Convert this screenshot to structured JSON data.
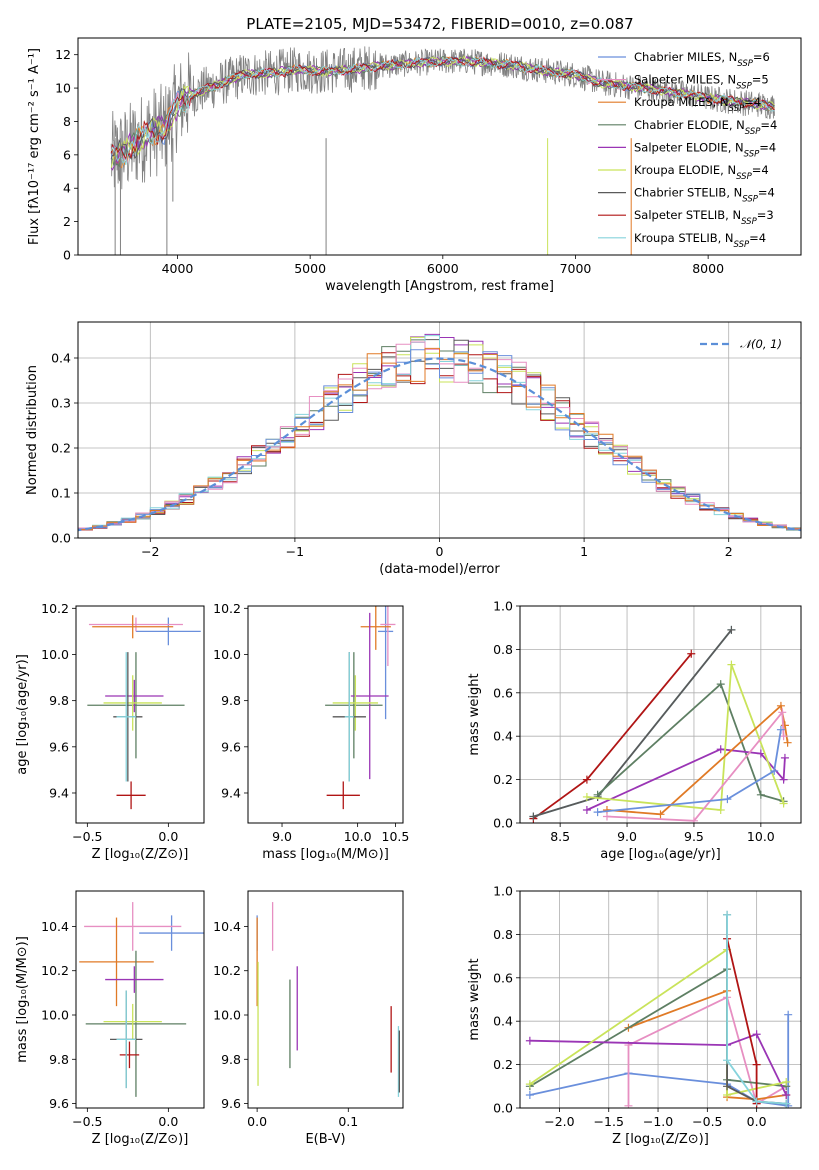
{
  "title": "PLATE=2105, MJD=53472, FIBERID=0010, z=0.087",
  "colors": {
    "chabrier_miles": "#6a8fdc",
    "salpeter_miles": "#e78fc2",
    "kroupa_miles": "#e07a26",
    "chabrier_elodie": "#5e7f63",
    "salpeter_elodie": "#9a35b5",
    "kroupa_elodie": "#c9e35a",
    "chabrier_stelib": "#5a5a5a",
    "salpeter_stelib": "#b01515",
    "kroupa_stelib": "#86d3dc",
    "data": "#808080",
    "gaussian": "#5b8fd8"
  },
  "chart_data": [
    {
      "type": "line",
      "id": "spectrum",
      "title": "PLATE=2105, MJD=53472, FIBERID=0010, z=0.087",
      "xlabel": "wavelength [Angstrom, rest frame]",
      "ylabel": "Flux [fλ10⁻¹⁷ erg cm⁻² s⁻¹ A⁻¹]",
      "xlim": [
        3250,
        8700
      ],
      "ylim": [
        0,
        13
      ],
      "xticks": [
        4000,
        5000,
        6000,
        7000,
        8000
      ],
      "yticks": [
        0,
        2,
        4,
        6,
        8,
        10,
        12
      ],
      "grid": false,
      "legend_position": "right",
      "legend": [
        {
          "label": "Chabrier MILES, N",
          "sub": "SSP",
          "suffix": "=6",
          "color": "chabrier_miles"
        },
        {
          "label": "Salpeter MILES, N",
          "sub": "SSP",
          "suffix": "=5",
          "color": "salpeter_miles"
        },
        {
          "label": "Kroupa MILES, N",
          "sub": "SSP",
          "suffix": "=4",
          "color": "kroupa_miles"
        },
        {
          "label": "Chabrier ELODIE, N",
          "sub": "SSP",
          "suffix": "=4",
          "color": "chabrier_elodie"
        },
        {
          "label": "Salpeter ELODIE, N",
          "sub": "SSP",
          "suffix": "=4",
          "color": "salpeter_elodie"
        },
        {
          "label": "Kroupa ELODIE, N",
          "sub": "SSP",
          "suffix": "=4",
          "color": "kroupa_elodie"
        },
        {
          "label": "Chabrier STELIB, N",
          "sub": "SSP",
          "suffix": "=4",
          "color": "chabrier_stelib"
        },
        {
          "label": "Salpeter STELIB, N",
          "sub": "SSP",
          "suffix": "=3",
          "color": "salpeter_stelib"
        },
        {
          "label": "Kroupa STELIB, N",
          "sub": "SSP",
          "suffix": "=4",
          "color": "kroupa_stelib"
        }
      ],
      "continuum": {
        "x": [
          3500,
          3600,
          3700,
          3800,
          3900,
          4000,
          4100,
          4300,
          4500,
          4700,
          4900,
          5100,
          5300,
          5500,
          5800,
          6000,
          6200,
          6500,
          6800,
          7000,
          7200,
          7500,
          7800,
          8000,
          8200,
          8400,
          8500
        ],
        "y": [
          5.8,
          6.2,
          6.8,
          7.4,
          7.5,
          9.0,
          9.6,
          10.2,
          10.8,
          10.9,
          11.1,
          11.0,
          11.1,
          11.3,
          11.5,
          11.6,
          11.6,
          11.4,
          11.0,
          10.8,
          10.3,
          10.0,
          9.7,
          9.4,
          9.2,
          9.0,
          8.9
        ]
      },
      "spikes_down": [
        {
          "x": 3530,
          "y": 0
        },
        {
          "x": 3570,
          "y": 0
        },
        {
          "x": 3920,
          "y": 0
        },
        {
          "x": 3965,
          "y": 3.2
        },
        {
          "x": 5120,
          "y": 0
        },
        {
          "x": 6790,
          "y": 0
        },
        {
          "x": 7420,
          "y": 0
        }
      ]
    },
    {
      "type": "histogram",
      "id": "residuals",
      "xlabel": "(data-model)/error",
      "ylabel": "Normed distribution",
      "xlim": [
        -2.5,
        2.5
      ],
      "ylim": [
        0,
        0.48
      ],
      "xticks": [
        -2,
        -1,
        0,
        1,
        2
      ],
      "yticks": [
        0.0,
        0.1,
        0.2,
        0.3,
        0.4
      ],
      "grid": true,
      "legend_position": "top-right",
      "gaussian_label": "𝒩(0, 1)",
      "bin_width": 0.1
    },
    {
      "type": "scatter",
      "id": "age_vs_z",
      "xlabel": "Z [log₁₀(Z/Z⊙)]",
      "ylabel": "age  [log₁₀(age/yr)]",
      "xlim": [
        -0.57,
        0.22
      ],
      "ylim": [
        9.27,
        10.21
      ],
      "xticks": [
        -0.5,
        0.0
      ],
      "yticks": [
        9.4,
        9.6,
        9.8,
        10.0,
        10.2
      ],
      "grid": false,
      "points": [
        {
          "model": "chabrier_miles",
          "x": 0.0,
          "y": 10.1,
          "xerr": 0.2,
          "yerr": 0.06
        },
        {
          "model": "salpeter_miles",
          "x": -0.2,
          "y": 10.13,
          "xerr": 0.29,
          "yerr": 0.03
        },
        {
          "model": "kroupa_miles",
          "x": -0.22,
          "y": 10.12,
          "xerr": 0.25,
          "yerr": 0.05
        },
        {
          "model": "chabrier_elodie",
          "x": -0.2,
          "y": 9.78,
          "xerr": 0.3,
          "yerr": 0.23
        },
        {
          "model": "salpeter_elodie",
          "x": -0.21,
          "y": 9.82,
          "xerr": 0.18,
          "yerr": 0.07
        },
        {
          "model": "kroupa_elodie",
          "x": -0.22,
          "y": 9.79,
          "xerr": 0.18,
          "yerr": 0.12
        },
        {
          "model": "chabrier_stelib",
          "x": -0.25,
          "y": 9.73,
          "xerr": 0.09,
          "yerr": 0.28
        },
        {
          "model": "salpeter_stelib",
          "x": -0.23,
          "y": 9.39,
          "xerr": 0.09,
          "yerr": 0.06
        },
        {
          "model": "kroupa_stelib",
          "x": -0.26,
          "y": 9.73,
          "xerr": 0.06,
          "yerr": 0.28
        }
      ]
    },
    {
      "type": "scatter",
      "id": "age_vs_mass",
      "xlabel": "mass [log₁₀(M/M⊙)]",
      "ylabel": "",
      "xlim": [
        8.55,
        10.6
      ],
      "ylim": [
        9.27,
        10.21
      ],
      "xticks": [
        9.0,
        10.0,
        10.5
      ],
      "yticks": [
        9.4,
        9.6,
        9.8,
        10.0,
        10.2
      ],
      "grid": false,
      "points": [
        {
          "model": "chabrier_miles",
          "x": 10.37,
          "y": 10.1,
          "xerr": 0.1,
          "yerr": 0.38
        },
        {
          "model": "salpeter_miles",
          "x": 10.4,
          "y": 10.13,
          "xerr": 0.1,
          "yerr": 0.18
        },
        {
          "model": "kroupa_miles",
          "x": 10.24,
          "y": 10.12,
          "xerr": 0.2,
          "yerr": 0.1
        },
        {
          "model": "chabrier_elodie",
          "x": 9.95,
          "y": 9.78,
          "xerr": 0.38,
          "yerr": 0.23
        },
        {
          "model": "salpeter_elodie",
          "x": 10.16,
          "y": 9.82,
          "xerr": 0.25,
          "yerr": 0.36
        },
        {
          "model": "kroupa_elodie",
          "x": 9.97,
          "y": 9.79,
          "xerr": 0.3,
          "yerr": 0.12
        },
        {
          "model": "chabrier_stelib",
          "x": 9.89,
          "y": 9.73,
          "xerr": 0.22,
          "yerr": 0.28
        },
        {
          "model": "salpeter_stelib",
          "x": 9.81,
          "y": 9.39,
          "xerr": 0.22,
          "yerr": 0.06
        },
        {
          "model": "kroupa_stelib",
          "x": 9.89,
          "y": 9.73,
          "xerr": 0.06,
          "yerr": 0.28
        }
      ]
    },
    {
      "type": "line",
      "id": "weight_vs_age",
      "xlabel": "age  [log₁₀(age/yr)]",
      "ylabel": "mass weight",
      "xlim": [
        8.2,
        10.3
      ],
      "ylim": [
        0,
        1.0
      ],
      "xticks": [
        8.5,
        9.0,
        9.5,
        10.0
      ],
      "yticks": [
        0.0,
        0.2,
        0.4,
        0.6,
        0.8,
        1.0
      ],
      "grid": true,
      "series": [
        {
          "model": "salpeter_stelib",
          "x": [
            8.3,
            8.7,
            9.48
          ],
          "y": [
            0.02,
            0.2,
            0.78
          ]
        },
        {
          "model": "kroupa_stelib",
          "x": [
            8.3,
            8.78,
            9.78
          ],
          "y": [
            0.03,
            0.12,
            0.89
          ]
        },
        {
          "model": "chabrier_stelib",
          "x": [
            8.3,
            8.78,
            9.78
          ],
          "y": [
            0.03,
            0.12,
            0.89
          ]
        },
        {
          "model": "chabrier_elodie",
          "x": [
            8.78,
            9.7,
            10.0,
            10.17
          ],
          "y": [
            0.13,
            0.64,
            0.13,
            0.1
          ]
        },
        {
          "model": "salpeter_elodie",
          "x": [
            8.7,
            9.7,
            10.0,
            10.17,
            10.18
          ],
          "y": [
            0.06,
            0.34,
            0.32,
            0.2,
            0.3
          ]
        },
        {
          "model": "kroupa_elodie",
          "x": [
            8.7,
            9.7,
            9.78,
            10.17
          ],
          "y": [
            0.12,
            0.06,
            0.73,
            0.09
          ]
        },
        {
          "model": "kroupa_miles",
          "x": [
            8.85,
            9.25,
            10.15,
            10.18,
            10.2
          ],
          "y": [
            0.06,
            0.04,
            0.54,
            0.45,
            0.37
          ]
        },
        {
          "model": "salpeter_miles",
          "x": [
            8.85,
            9.5,
            10.16,
            10.17
          ],
          "y": [
            0.03,
            0.01,
            0.51,
            0.4
          ]
        },
        {
          "model": "chabrier_miles",
          "x": [
            8.78,
            9.75,
            10.1,
            10.15
          ],
          "y": [
            0.05,
            0.11,
            0.24,
            0.43
          ]
        }
      ]
    },
    {
      "type": "scatter",
      "id": "mass_vs_z",
      "xlabel": "Z [log₁₀(Z/Z⊙)]",
      "ylabel": "mass [log₁₀(M/M⊙)]",
      "xlim": [
        -0.57,
        0.22
      ],
      "ylim": [
        9.58,
        10.56
      ],
      "xticks": [
        -0.5,
        0.0
      ],
      "yticks": [
        9.6,
        9.8,
        10.0,
        10.2,
        10.4
      ],
      "grid": false,
      "points": [
        {
          "model": "chabrier_miles",
          "x": 0.02,
          "y": 10.37,
          "xerr": 0.2,
          "yerr": 0.08
        },
        {
          "model": "salpeter_miles",
          "x": -0.22,
          "y": 10.4,
          "xerr": 0.3,
          "yerr": 0.11
        },
        {
          "model": "kroupa_miles",
          "x": -0.32,
          "y": 10.24,
          "xerr": 0.23,
          "yerr": 0.2
        },
        {
          "model": "chabrier_elodie",
          "x": -0.2,
          "y": 9.96,
          "xerr": 0.31,
          "yerr": 0.33
        },
        {
          "model": "salpeter_elodie",
          "x": -0.21,
          "y": 10.16,
          "xerr": 0.18,
          "yerr": 0.06
        },
        {
          "model": "kroupa_elodie",
          "x": -0.22,
          "y": 9.97,
          "xerr": 0.18,
          "yerr": 0.08
        },
        {
          "model": "chabrier_stelib",
          "x": -0.26,
          "y": 9.89,
          "xerr": 0.1,
          "yerr": 0.22
        },
        {
          "model": "salpeter_stelib",
          "x": -0.24,
          "y": 9.82,
          "xerr": 0.06,
          "yerr": 0.06
        },
        {
          "model": "kroupa_stelib",
          "x": -0.26,
          "y": 9.89,
          "xerr": 0.06,
          "yerr": 0.22
        }
      ]
    },
    {
      "type": "scatter",
      "id": "mass_vs_ebv",
      "xlabel": "E(B-V)",
      "ylabel": "",
      "xlim": [
        -0.01,
        0.16
      ],
      "ylim": [
        9.58,
        10.56
      ],
      "xticks": [
        0.0,
        0.1
      ],
      "yticks": [
        9.6,
        9.8,
        10.0,
        10.2,
        10.4
      ],
      "grid": false,
      "points": [
        {
          "model": "chabrier_miles",
          "x": 0.0,
          "y": 10.37,
          "xerr": 0,
          "yerr": 0.08
        },
        {
          "model": "kroupa_miles",
          "x": 0.0,
          "y": 10.24,
          "xerr": 0,
          "yerr": 0.2
        },
        {
          "model": "salpeter_miles",
          "x": 0.017,
          "y": 10.4,
          "xerr": 0,
          "yerr": 0.11
        },
        {
          "model": "kroupa_elodie",
          "x": 0.001,
          "y": 9.96,
          "xerr": 0,
          "yerr": 0.28
        },
        {
          "model": "chabrier_elodie",
          "x": 0.036,
          "y": 9.96,
          "xerr": 0,
          "yerr": 0.2
        },
        {
          "model": "salpeter_elodie",
          "x": 0.044,
          "y": 10.03,
          "xerr": 0,
          "yerr": 0.19
        },
        {
          "model": "salpeter_stelib",
          "x": 0.147,
          "y": 9.89,
          "xerr": 0,
          "yerr": 0.15
        },
        {
          "model": "kroupa_stelib",
          "x": 0.155,
          "y": 9.79,
          "xerr": 0,
          "yerr": 0.16
        },
        {
          "model": "chabrier_stelib",
          "x": 0.156,
          "y": 9.79,
          "xerr": 0,
          "yerr": 0.14
        }
      ]
    },
    {
      "type": "line",
      "id": "weight_vs_z",
      "xlabel": "Z [log₁₀(Z/Z⊙)]",
      "ylabel": "mass weight",
      "xlim": [
        -2.4,
        0.45
      ],
      "ylim": [
        0,
        1.0
      ],
      "xticks": [
        -2.0,
        -1.5,
        -1.0,
        -0.5,
        0.0
      ],
      "yticks": [
        0.0,
        0.2,
        0.4,
        0.6,
        0.8,
        1.0
      ],
      "grid": true,
      "series": [
        {
          "model": "chabrier_miles",
          "x": [
            -2.3,
            -1.3,
            -0.3,
            0.0,
            0.32,
            0.32
          ],
          "y": [
            0.06,
            0.16,
            0.11,
            0.03,
            0.01,
            0.43
          ]
        },
        {
          "model": "salpeter_miles",
          "x": [
            -1.3,
            -1.3,
            -0.3,
            0.0,
            0.3
          ],
          "y": [
            0.01,
            0.29,
            0.51,
            0.02,
            0.1
          ]
        },
        {
          "model": "kroupa_miles",
          "x": [
            -1.3,
            -0.3,
            -0.3,
            0.0,
            0.3
          ],
          "y": [
            0.37,
            0.54,
            0.05,
            0.04,
            0.06
          ]
        },
        {
          "model": "chabrier_elodie",
          "x": [
            -2.3,
            -0.3,
            -0.3,
            0.3
          ],
          "y": [
            0.1,
            0.64,
            0.13,
            0.1
          ]
        },
        {
          "model": "salpeter_elodie",
          "x": [
            -2.3,
            -0.3,
            0.0,
            0.3
          ],
          "y": [
            0.31,
            0.29,
            0.34,
            0.06
          ]
        },
        {
          "model": "kroupa_elodie",
          "x": [
            -2.3,
            -0.3,
            -0.3,
            0.3
          ],
          "y": [
            0.11,
            0.73,
            0.06,
            0.12
          ]
        },
        {
          "model": "chabrier_stelib",
          "x": [
            -0.3,
            -0.3,
            0.0,
            0.3
          ],
          "y": [
            0.89,
            0.1,
            0.03,
            0.02
          ]
        },
        {
          "model": "salpeter_stelib",
          "x": [
            -0.3,
            0.0,
            0.0
          ],
          "y": [
            0.78,
            0.2,
            0.02
          ]
        },
        {
          "model": "kroupa_stelib",
          "x": [
            -0.3,
            -0.3,
            0.0,
            0.3
          ],
          "y": [
            0.89,
            0.22,
            0.03,
            0.02
          ]
        }
      ]
    }
  ]
}
